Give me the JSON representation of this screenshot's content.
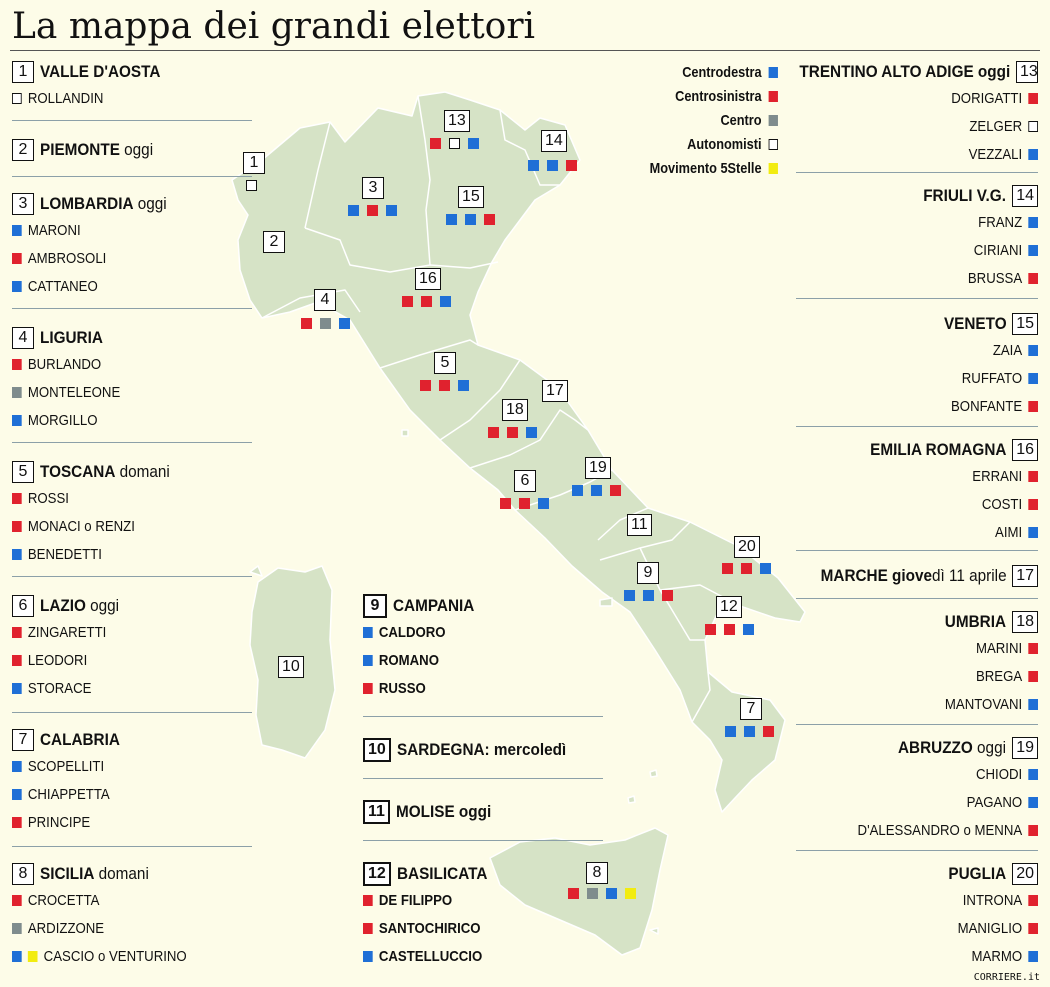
{
  "title": "La mappa dei grandi elettori",
  "credit": "CORRIERE.it",
  "colors": {
    "centrodestra": "#1f6fd6",
    "centrosinistra": "#e0222e",
    "centro": "#7f8c8d",
    "autonomisti": "#ffffff",
    "m5s": "#f2ec10",
    "land": "#d6e3c6"
  },
  "legend": [
    {
      "label": "Centrodestra",
      "party": "centrodestra"
    },
    {
      "label": "Centrosinistra",
      "party": "centrosinistra"
    },
    {
      "label": "Centro",
      "party": "centro"
    },
    {
      "label": "Autonomisti",
      "party": "autonomisti"
    },
    {
      "label": "Movimento 5Stelle",
      "party": "m5s"
    }
  ],
  "left_regions": [
    {
      "num": "1",
      "name": "VALLE D'AOSTA",
      "note": "",
      "candidates": [
        {
          "name": "ROLLANDIN",
          "parties": [
            "autonomisti"
          ]
        }
      ]
    },
    {
      "num": "2",
      "name": "PIEMONTE",
      "note": " oggi",
      "candidates": []
    },
    {
      "num": "3",
      "name": "LOMBARDIA",
      "note": " oggi",
      "candidates": [
        {
          "name": "MARONI",
          "parties": [
            "centrodestra"
          ]
        },
        {
          "name": "AMBROSOLI",
          "parties": [
            "centrosinistra"
          ]
        },
        {
          "name": "CATTANEO",
          "parties": [
            "centrodestra"
          ]
        }
      ]
    },
    {
      "num": "4",
      "name": "LIGURIA",
      "note": "",
      "candidates": [
        {
          "name": "BURLANDO",
          "parties": [
            "centrosinistra"
          ]
        },
        {
          "name": "MONTELEONE",
          "parties": [
            "centro"
          ]
        },
        {
          "name": "MORGILLO",
          "parties": [
            "centrodestra"
          ]
        }
      ]
    },
    {
      "num": "5",
      "name": "TOSCANA",
      "note": " domani",
      "candidates": [
        {
          "name": "ROSSI",
          "parties": [
            "centrosinistra"
          ]
        },
        {
          "name": "MONACI o RENZI",
          "parties": [
            "centrosinistra"
          ]
        },
        {
          "name": "BENEDETTI",
          "parties": [
            "centrodestra"
          ]
        }
      ]
    },
    {
      "num": "6",
      "name": "LAZIO",
      "note": " oggi",
      "candidates": [
        {
          "name": "ZINGARETTI",
          "parties": [
            "centrosinistra"
          ]
        },
        {
          "name": "LEODORI",
          "parties": [
            "centrosinistra"
          ]
        },
        {
          "name": "STORACE",
          "parties": [
            "centrodestra"
          ]
        }
      ]
    },
    {
      "num": "7",
      "name": "CALABRIA",
      "note": "",
      "candidates": [
        {
          "name": "SCOPELLITI",
          "parties": [
            "centrodestra"
          ]
        },
        {
          "name": "CHIAPPETTA",
          "parties": [
            "centrodestra"
          ]
        },
        {
          "name": "PRINCIPE",
          "parties": [
            "centrosinistra"
          ]
        }
      ]
    },
    {
      "num": "8",
      "name": "SICILIA",
      "note": " domani",
      "candidates": [
        {
          "name": "CROCETTA",
          "parties": [
            "centrosinistra"
          ]
        },
        {
          "name": "ARDIZZONE",
          "parties": [
            "centro"
          ]
        },
        {
          "name": "CASCIO o VENTURINO",
          "parties": [
            "centrodestra",
            "m5s"
          ]
        }
      ]
    }
  ],
  "middle_regions": [
    {
      "num": "9",
      "name": "CAMPANIA",
      "note": "",
      "candidates": [
        {
          "name": "CALDORO",
          "parties": [
            "centrodestra"
          ]
        },
        {
          "name": "ROMANO",
          "parties": [
            "centrodestra"
          ]
        },
        {
          "name": "RUSSO",
          "parties": [
            "centrosinistra"
          ]
        }
      ]
    },
    {
      "num": "10",
      "name": "SARDEGNA: mercoledì",
      "note": "",
      "candidates": []
    },
    {
      "num": "11",
      "name": "MOLISE oggi",
      "note": "",
      "candidates": []
    },
    {
      "num": "12",
      "name": "BASILICATA",
      "note": "",
      "candidates": [
        {
          "name": "DE FILIPPO",
          "parties": [
            "centrosinistra"
          ]
        },
        {
          "name": "SANTOCHIRICO",
          "parties": [
            "centrosinistra"
          ]
        },
        {
          "name": "CASTELLUCCIO",
          "parties": [
            "centrodestra"
          ]
        }
      ]
    }
  ],
  "right_regions": [
    {
      "num": "13",
      "name": "TRENTINO ALTO ADIGE oggi",
      "note": "",
      "candidates": [
        {
          "name": "DORIGATTI",
          "parties": [
            "centrosinistra"
          ]
        },
        {
          "name": "ZELGER",
          "parties": [
            "autonomisti"
          ]
        },
        {
          "name": "VEZZALI",
          "parties": [
            "centrodestra"
          ]
        }
      ]
    },
    {
      "num": "14",
      "name": "FRIULI V.G.",
      "note": "",
      "candidates": [
        {
          "name": "FRANZ",
          "parties": [
            "centrodestra"
          ]
        },
        {
          "name": "CIRIANI",
          "parties": [
            "centrodestra"
          ]
        },
        {
          "name": "BRUSSA",
          "parties": [
            "centrosinistra"
          ]
        }
      ]
    },
    {
      "num": "15",
      "name": "VENETO",
      "note": "",
      "candidates": [
        {
          "name": "ZAIA",
          "parties": [
            "centrodestra"
          ]
        },
        {
          "name": "RUFFATO",
          "parties": [
            "centrodestra"
          ]
        },
        {
          "name": "BONFANTE",
          "parties": [
            "centrosinistra"
          ]
        }
      ]
    },
    {
      "num": "16",
      "name": "EMILIA ROMAGNA",
      "note": "",
      "candidates": [
        {
          "name": "ERRANI",
          "parties": [
            "centrosinistra"
          ]
        },
        {
          "name": "COSTI",
          "parties": [
            "centrosinistra"
          ]
        },
        {
          "name": "AIMI",
          "parties": [
            "centrodestra"
          ]
        }
      ]
    },
    {
      "num": "17",
      "name": "MARCHE giove",
      "note": "dì 11 aprile",
      "candidates": []
    },
    {
      "num": "18",
      "name": "UMBRIA",
      "note": "",
      "candidates": [
        {
          "name": "MARINI",
          "parties": [
            "centrosinistra"
          ]
        },
        {
          "name": "BREGA",
          "parties": [
            "centrosinistra"
          ]
        },
        {
          "name": "MANTOVANI",
          "parties": [
            "centrodestra"
          ]
        }
      ]
    },
    {
      "num": "19",
      "name": "ABRUZZO",
      "note": " oggi",
      "candidates": [
        {
          "name": "CHIODI",
          "parties": [
            "centrodestra"
          ]
        },
        {
          "name": "PAGANO",
          "parties": [
            "centrodestra"
          ]
        },
        {
          "name": "D'ALESSANDRO o MENNA",
          "parties": [
            "centrosinistra"
          ]
        }
      ]
    },
    {
      "num": "20",
      "name": "PUGLIA",
      "note": "",
      "candidates": [
        {
          "name": "INTRONA",
          "parties": [
            "centrosinistra"
          ]
        },
        {
          "name": "MANIGLIO",
          "parties": [
            "centrosinistra"
          ]
        },
        {
          "name": "MARMO",
          "parties": [
            "centrodestra"
          ]
        }
      ]
    }
  ],
  "map_labels": [
    {
      "num": "1",
      "parties": [
        "autonomisti"
      ]
    },
    {
      "num": "2",
      "parties": []
    },
    {
      "num": "3",
      "parties": [
        "centrodestra",
        "centrosinistra",
        "centrodestra"
      ]
    },
    {
      "num": "4",
      "parties": [
        "centrosinistra",
        "centro",
        "centrodestra"
      ]
    },
    {
      "num": "5",
      "parties": [
        "centrosinistra",
        "centrosinistra",
        "centrodestra"
      ]
    },
    {
      "num": "6",
      "parties": [
        "centrosinistra",
        "centrosinistra",
        "centrodestra"
      ]
    },
    {
      "num": "7",
      "parties": [
        "centrodestra",
        "centrodestra",
        "centrosinistra"
      ]
    },
    {
      "num": "8",
      "parties": [
        "centrosinistra",
        "centro",
        "centrodestra",
        "m5s"
      ]
    },
    {
      "num": "9",
      "parties": [
        "centrodestra",
        "centrodestra",
        "centrosinistra"
      ]
    },
    {
      "num": "10",
      "parties": []
    },
    {
      "num": "11",
      "parties": []
    },
    {
      "num": "12",
      "parties": [
        "centrosinistra",
        "centrosinistra",
        "centrodestra"
      ]
    },
    {
      "num": "13",
      "parties": [
        "centrosinistra",
        "autonomisti",
        "centrodestra"
      ]
    },
    {
      "num": "14",
      "parties": [
        "centrodestra",
        "centrodestra",
        "centrosinistra"
      ]
    },
    {
      "num": "15",
      "parties": [
        "centrodestra",
        "centrodestra",
        "centrosinistra"
      ]
    },
    {
      "num": "16",
      "parties": [
        "centrosinistra",
        "centrosinistra",
        "centrodestra"
      ]
    },
    {
      "num": "17",
      "parties": []
    },
    {
      "num": "18",
      "parties": [
        "centrosinistra",
        "centrosinistra",
        "centrodestra"
      ]
    },
    {
      "num": "19",
      "parties": [
        "centrodestra",
        "centrodestra",
        "centrosinistra"
      ]
    },
    {
      "num": "20",
      "parties": [
        "centrosinistra",
        "centrosinistra",
        "centrodestra"
      ]
    }
  ]
}
